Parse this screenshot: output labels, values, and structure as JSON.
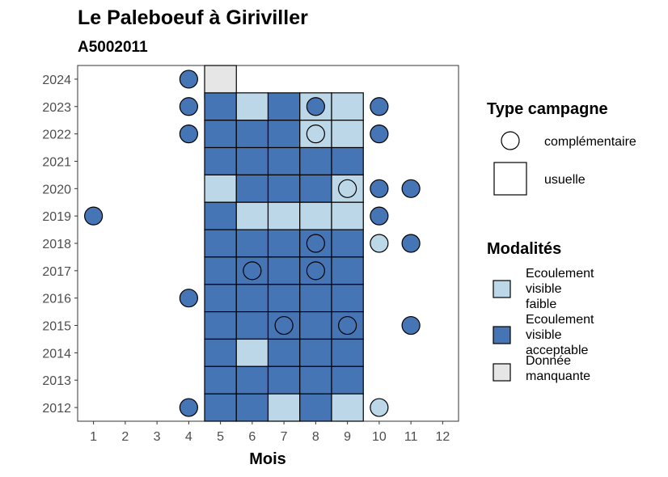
{
  "chart_data": {
    "type": "heatmap",
    "title": "Le Paleboeuf à Giriviller",
    "subtitle": "A5002011",
    "xlabel": "Mois",
    "ylabel": "",
    "x_ticks": [
      1,
      2,
      3,
      4,
      5,
      6,
      7,
      8,
      9,
      10,
      11,
      12
    ],
    "y_ticks": [
      2012,
      2013,
      2014,
      2015,
      2016,
      2017,
      2018,
      2019,
      2020,
      2021,
      2022,
      2023,
      2024
    ],
    "xlim": [
      0.5,
      12.5
    ],
    "ylim": [
      2011.5,
      2024.5
    ],
    "grid": false,
    "colors": {
      "faible": "#bcd8e8",
      "acceptable": "#4575b4",
      "manquante": "#e6e6e6",
      "outline": "#000000",
      "panel_border": "#333333"
    },
    "legend_campagne": {
      "title": "Type campagne",
      "items": [
        {
          "shape": "circle",
          "label": "complémentaire"
        },
        {
          "shape": "square",
          "label": "usuelle"
        }
      ]
    },
    "legend_modalites": {
      "title": "Modalités",
      "items": [
        {
          "key": "faible",
          "lines": [
            "Ecoulement",
            "visible",
            "faible"
          ]
        },
        {
          "key": "acceptable",
          "lines": [
            "Ecoulement",
            "visible",
            "acceptable"
          ]
        },
        {
          "key": "manquante",
          "lines": [
            "Donnée",
            "manquante"
          ]
        }
      ]
    },
    "points": [
      {
        "month": 5,
        "year": 2024,
        "campagne": "usuelle",
        "modalite": "manquante"
      },
      {
        "month": 4,
        "year": 2024,
        "campagne": "complémentaire",
        "modalite": "acceptable"
      },
      {
        "month": 4,
        "year": 2023,
        "campagne": "complémentaire",
        "modalite": "acceptable"
      },
      {
        "month": 5,
        "year": 2023,
        "campagne": "usuelle",
        "modalite": "acceptable"
      },
      {
        "month": 6,
        "year": 2023,
        "campagne": "usuelle",
        "modalite": "faible"
      },
      {
        "month": 7,
        "year": 2023,
        "campagne": "usuelle",
        "modalite": "acceptable"
      },
      {
        "month": 8,
        "year": 2023,
        "campagne": "usuelle",
        "modalite": "faible"
      },
      {
        "month": 8,
        "year": 2023,
        "campagne": "complémentaire",
        "modalite": "acceptable"
      },
      {
        "month": 9,
        "year": 2023,
        "campagne": "usuelle",
        "modalite": "faible"
      },
      {
        "month": 10,
        "year": 2023,
        "campagne": "complémentaire",
        "modalite": "acceptable"
      },
      {
        "month": 4,
        "year": 2022,
        "campagne": "complémentaire",
        "modalite": "acceptable"
      },
      {
        "month": 5,
        "year": 2022,
        "campagne": "usuelle",
        "modalite": "acceptable"
      },
      {
        "month": 6,
        "year": 2022,
        "campagne": "usuelle",
        "modalite": "acceptable"
      },
      {
        "month": 7,
        "year": 2022,
        "campagne": "usuelle",
        "modalite": "acceptable"
      },
      {
        "month": 8,
        "year": 2022,
        "campagne": "usuelle",
        "modalite": "faible"
      },
      {
        "month": 8,
        "year": 2022,
        "campagne": "complémentaire",
        "modalite": "faible"
      },
      {
        "month": 9,
        "year": 2022,
        "campagne": "usuelle",
        "modalite": "faible"
      },
      {
        "month": 10,
        "year": 2022,
        "campagne": "complémentaire",
        "modalite": "acceptable"
      },
      {
        "month": 5,
        "year": 2021,
        "campagne": "usuelle",
        "modalite": "acceptable"
      },
      {
        "month": 6,
        "year": 2021,
        "campagne": "usuelle",
        "modalite": "acceptable"
      },
      {
        "month": 7,
        "year": 2021,
        "campagne": "usuelle",
        "modalite": "acceptable"
      },
      {
        "month": 8,
        "year": 2021,
        "campagne": "usuelle",
        "modalite": "acceptable"
      },
      {
        "month": 9,
        "year": 2021,
        "campagne": "usuelle",
        "modalite": "acceptable"
      },
      {
        "month": 5,
        "year": 2020,
        "campagne": "usuelle",
        "modalite": "faible"
      },
      {
        "month": 6,
        "year": 2020,
        "campagne": "usuelle",
        "modalite": "acceptable"
      },
      {
        "month": 7,
        "year": 2020,
        "campagne": "usuelle",
        "modalite": "acceptable"
      },
      {
        "month": 8,
        "year": 2020,
        "campagne": "usuelle",
        "modalite": "acceptable"
      },
      {
        "month": 9,
        "year": 2020,
        "campagne": "usuelle",
        "modalite": "faible"
      },
      {
        "month": 9,
        "year": 2020,
        "campagne": "complémentaire",
        "modalite": "faible"
      },
      {
        "month": 10,
        "year": 2020,
        "campagne": "complémentaire",
        "modalite": "acceptable"
      },
      {
        "month": 11,
        "year": 2020,
        "campagne": "complémentaire",
        "modalite": "acceptable"
      },
      {
        "month": 1,
        "year": 2019,
        "campagne": "complémentaire",
        "modalite": "acceptable"
      },
      {
        "month": 5,
        "year": 2019,
        "campagne": "usuelle",
        "modalite": "acceptable"
      },
      {
        "month": 6,
        "year": 2019,
        "campagne": "usuelle",
        "modalite": "faible"
      },
      {
        "month": 7,
        "year": 2019,
        "campagne": "usuelle",
        "modalite": "faible"
      },
      {
        "month": 8,
        "year": 2019,
        "campagne": "usuelle",
        "modalite": "faible"
      },
      {
        "month": 9,
        "year": 2019,
        "campagne": "usuelle",
        "modalite": "faible"
      },
      {
        "month": 10,
        "year": 2019,
        "campagne": "complémentaire",
        "modalite": "acceptable"
      },
      {
        "month": 5,
        "year": 2018,
        "campagne": "usuelle",
        "modalite": "acceptable"
      },
      {
        "month": 6,
        "year": 2018,
        "campagne": "usuelle",
        "modalite": "acceptable"
      },
      {
        "month": 7,
        "year": 2018,
        "campagne": "usuelle",
        "modalite": "acceptable"
      },
      {
        "month": 8,
        "year": 2018,
        "campagne": "usuelle",
        "modalite": "acceptable"
      },
      {
        "month": 8,
        "year": 2018,
        "campagne": "complémentaire",
        "modalite": "acceptable"
      },
      {
        "month": 9,
        "year": 2018,
        "campagne": "usuelle",
        "modalite": "acceptable"
      },
      {
        "month": 10,
        "year": 2018,
        "campagne": "complémentaire",
        "modalite": "faible"
      },
      {
        "month": 11,
        "year": 2018,
        "campagne": "complémentaire",
        "modalite": "acceptable"
      },
      {
        "month": 5,
        "year": 2017,
        "campagne": "usuelle",
        "modalite": "acceptable"
      },
      {
        "month": 6,
        "year": 2017,
        "campagne": "usuelle",
        "modalite": "acceptable"
      },
      {
        "month": 6,
        "year": 2017,
        "campagne": "complémentaire",
        "modalite": "acceptable"
      },
      {
        "month": 7,
        "year": 2017,
        "campagne": "usuelle",
        "modalite": "acceptable"
      },
      {
        "month": 8,
        "year": 2017,
        "campagne": "usuelle",
        "modalite": "acceptable"
      },
      {
        "month": 8,
        "year": 2017,
        "campagne": "complémentaire",
        "modalite": "acceptable"
      },
      {
        "month": 9,
        "year": 2017,
        "campagne": "usuelle",
        "modalite": "acceptable"
      },
      {
        "month": 4,
        "year": 2016,
        "campagne": "complémentaire",
        "modalite": "acceptable"
      },
      {
        "month": 5,
        "year": 2016,
        "campagne": "usuelle",
        "modalite": "acceptable"
      },
      {
        "month": 6,
        "year": 2016,
        "campagne": "usuelle",
        "modalite": "acceptable"
      },
      {
        "month": 7,
        "year": 2016,
        "campagne": "usuelle",
        "modalite": "acceptable"
      },
      {
        "month": 8,
        "year": 2016,
        "campagne": "usuelle",
        "modalite": "acceptable"
      },
      {
        "month": 9,
        "year": 2016,
        "campagne": "usuelle",
        "modalite": "acceptable"
      },
      {
        "month": 5,
        "year": 2015,
        "campagne": "usuelle",
        "modalite": "acceptable"
      },
      {
        "month": 6,
        "year": 2015,
        "campagne": "usuelle",
        "modalite": "acceptable"
      },
      {
        "month": 7,
        "year": 2015,
        "campagne": "usuelle",
        "modalite": "acceptable"
      },
      {
        "month": 7,
        "year": 2015,
        "campagne": "complémentaire",
        "modalite": "acceptable"
      },
      {
        "month": 8,
        "year": 2015,
        "campagne": "usuelle",
        "modalite": "acceptable"
      },
      {
        "month": 9,
        "year": 2015,
        "campagne": "usuelle",
        "modalite": "acceptable"
      },
      {
        "month": 9,
        "year": 2015,
        "campagne": "complémentaire",
        "modalite": "acceptable"
      },
      {
        "month": 11,
        "year": 2015,
        "campagne": "complémentaire",
        "modalite": "acceptable"
      },
      {
        "month": 5,
        "year": 2014,
        "campagne": "usuelle",
        "modalite": "acceptable"
      },
      {
        "month": 6,
        "year": 2014,
        "campagne": "usuelle",
        "modalite": "faible"
      },
      {
        "month": 7,
        "year": 2014,
        "campagne": "usuelle",
        "modalite": "acceptable"
      },
      {
        "month": 8,
        "year": 2014,
        "campagne": "usuelle",
        "modalite": "acceptable"
      },
      {
        "month": 9,
        "year": 2014,
        "campagne": "usuelle",
        "modalite": "acceptable"
      },
      {
        "month": 5,
        "year": 2013,
        "campagne": "usuelle",
        "modalite": "acceptable"
      },
      {
        "month": 6,
        "year": 2013,
        "campagne": "usuelle",
        "modalite": "acceptable"
      },
      {
        "month": 7,
        "year": 2013,
        "campagne": "usuelle",
        "modalite": "acceptable"
      },
      {
        "month": 8,
        "year": 2013,
        "campagne": "usuelle",
        "modalite": "acceptable"
      },
      {
        "month": 9,
        "year": 2013,
        "campagne": "usuelle",
        "modalite": "acceptable"
      },
      {
        "month": 4,
        "year": 2012,
        "campagne": "complémentaire",
        "modalite": "acceptable"
      },
      {
        "month": 5,
        "year": 2012,
        "campagne": "usuelle",
        "modalite": "acceptable"
      },
      {
        "month": 6,
        "year": 2012,
        "campagne": "usuelle",
        "modalite": "acceptable"
      },
      {
        "month": 7,
        "year": 2012,
        "campagne": "usuelle",
        "modalite": "faible"
      },
      {
        "month": 8,
        "year": 2012,
        "campagne": "usuelle",
        "modalite": "acceptable"
      },
      {
        "month": 9,
        "year": 2012,
        "campagne": "usuelle",
        "modalite": "faible"
      },
      {
        "month": 10,
        "year": 2012,
        "campagne": "complémentaire",
        "modalite": "faible"
      }
    ]
  }
}
